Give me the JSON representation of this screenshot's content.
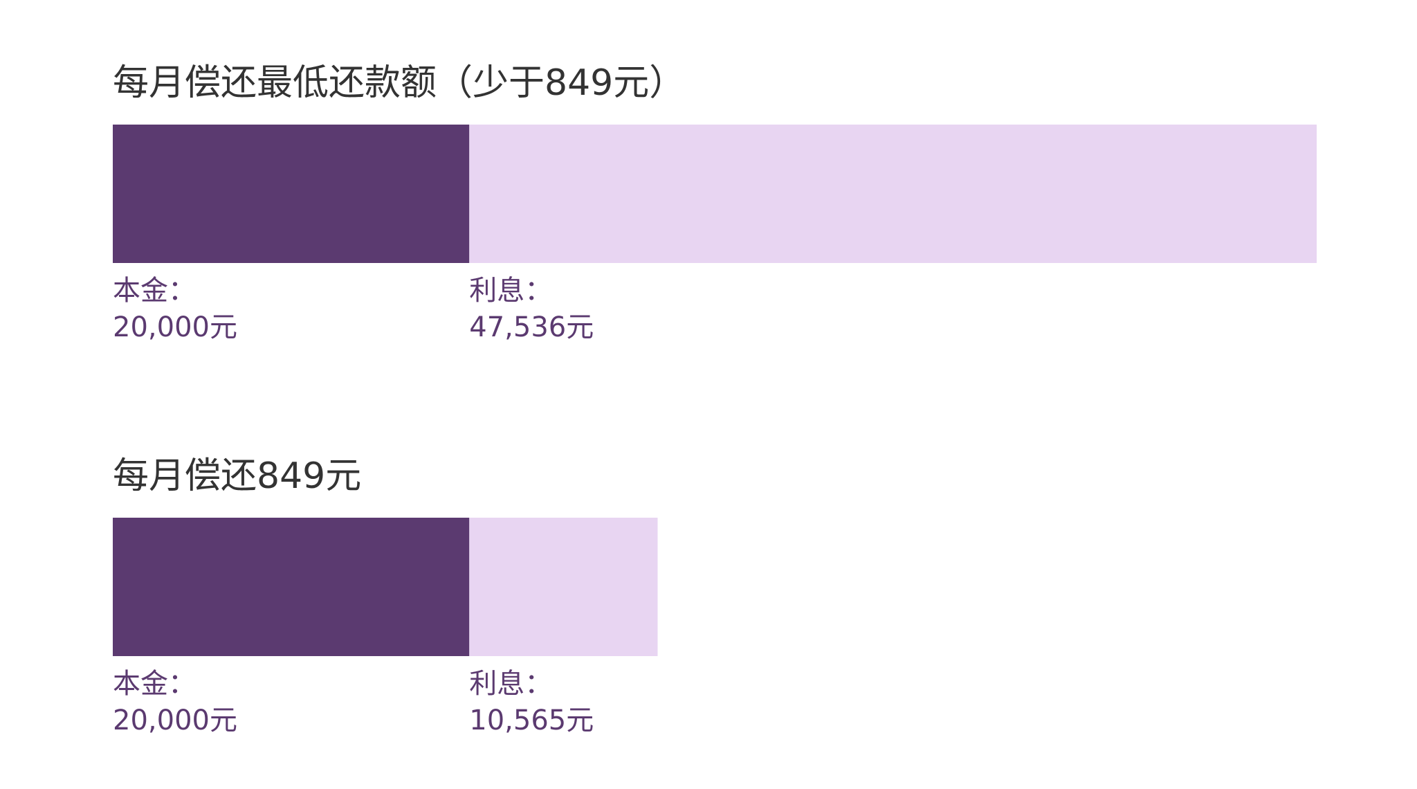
{
  "colors": {
    "principal": "#5b3a70",
    "interest": "#e8d5f2",
    "title": "#333333",
    "label": "#5b3a70"
  },
  "chart_data": [
    {
      "type": "bar",
      "orientation": "horizontal",
      "stacked": true,
      "title": "每月偿还最低还款额（少于849元）",
      "xlim": [
        0,
        67536
      ],
      "series": [
        {
          "name": "本金：",
          "display": "20,000元",
          "value": 20000
        },
        {
          "name": "利息：",
          "display": "47,536元",
          "value": 47536
        }
      ]
    },
    {
      "type": "bar",
      "orientation": "horizontal",
      "stacked": true,
      "title": "每月偿还849元",
      "xlim": [
        0,
        67536
      ],
      "series": [
        {
          "name": "本金：",
          "display": "20,000元",
          "value": 20000
        },
        {
          "name": "利息：",
          "display": "10,565元",
          "value": 10565
        }
      ]
    }
  ]
}
